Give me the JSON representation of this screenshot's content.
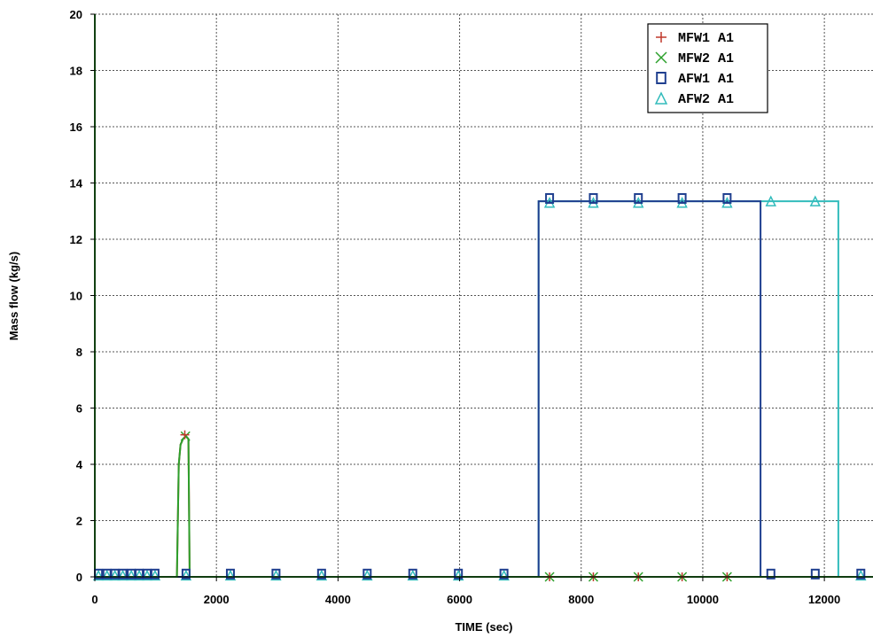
{
  "chart_data": {
    "type": "line",
    "title": "",
    "xlabel": "TIME (sec)",
    "ylabel": "Mass flow (kg/s)",
    "xlim": [
      0,
      12800
    ],
    "ylim": [
      0,
      20
    ],
    "xticks": [
      0,
      2000,
      4000,
      6000,
      8000,
      10000,
      12000
    ],
    "yticks": [
      0,
      2,
      4,
      6,
      8,
      10,
      12,
      14,
      16,
      18,
      20
    ],
    "grid": true,
    "legend_position": "top-right",
    "series": [
      {
        "name": "MFW1 A1",
        "color": "#c0392b",
        "marker": "plus",
        "x": [
          0,
          0.1,
          30,
          1350,
          1380,
          1410,
          1450,
          1500,
          1540,
          1560,
          1600,
          12800
        ],
        "y": [
          20,
          0,
          0,
          0,
          4.0,
          4.7,
          4.9,
          5.0,
          4.9,
          0,
          0,
          0
        ],
        "marker_x": [
          1480,
          7480,
          8200,
          8940,
          9660,
          10400
        ],
        "marker_y": [
          5.05,
          0,
          0,
          0,
          0,
          0
        ]
      },
      {
        "name": "MFW2 A1",
        "color": "#2ca02c",
        "marker": "x",
        "x": [
          0,
          0.1,
          30,
          1350,
          1380,
          1410,
          1450,
          1500,
          1540,
          1560,
          1600,
          12800
        ],
        "y": [
          20,
          0,
          0,
          0,
          4.0,
          4.7,
          4.9,
          5.0,
          4.9,
          0,
          0,
          0
        ],
        "marker_x": [
          1490,
          7480,
          8200,
          8940,
          9660,
          10400
        ],
        "marker_y": [
          5.0,
          0,
          0,
          0,
          0,
          0
        ]
      },
      {
        "name": "AFW1 A1",
        "color": "#1f3f8f",
        "marker": "square",
        "x": [
          0,
          7300,
          7300,
          10950,
          10950,
          12800
        ],
        "y": [
          0,
          0,
          13.35,
          13.35,
          0,
          0
        ],
        "marker_x": [
          60,
          200,
          330,
          460,
          600,
          730,
          860,
          990,
          1500,
          2230,
          2980,
          3730,
          4480,
          5230,
          5980,
          6730,
          7480,
          8200,
          8940,
          9660,
          10400,
          11120,
          11850,
          12600
        ],
        "marker_y": [
          0.1,
          0.1,
          0.1,
          0.1,
          0.1,
          0.1,
          0.1,
          0.1,
          0.1,
          0.1,
          0.1,
          0.1,
          0.1,
          0.1,
          0.1,
          0.1,
          13.45,
          13.45,
          13.45,
          13.45,
          13.45,
          0.1,
          0.1,
          0.1
        ]
      },
      {
        "name": "AFW2 A1",
        "color": "#33bcbc",
        "marker": "triangle",
        "x": [
          0,
          7300,
          7300,
          12230,
          12230,
          12800
        ],
        "y": [
          0,
          0,
          13.35,
          13.35,
          0,
          0
        ],
        "marker_x": [
          60,
          200,
          330,
          460,
          600,
          730,
          860,
          990,
          1500,
          2230,
          2980,
          3730,
          4480,
          5230,
          5980,
          6730,
          7480,
          8200,
          8940,
          9660,
          10400,
          11120,
          11850,
          12600
        ],
        "marker_y": [
          0.05,
          0.05,
          0.05,
          0.05,
          0.05,
          0.05,
          0.05,
          0.05,
          0.05,
          0.05,
          0.05,
          0.05,
          0.05,
          0.05,
          0.05,
          0.05,
          13.3,
          13.3,
          13.3,
          13.3,
          13.3,
          13.35,
          13.35,
          0.05
        ]
      }
    ]
  }
}
